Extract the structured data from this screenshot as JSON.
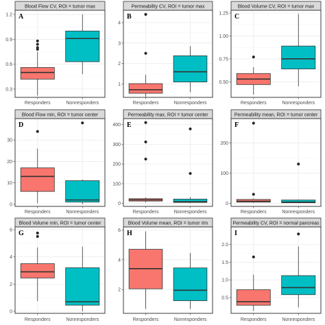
{
  "colors": {
    "responders": "#F8766D",
    "nonresponders": "#00BFC4"
  },
  "chart_data": [
    {
      "type": "box",
      "letter": "A",
      "title": "Blood Flow CV, ROI = tumor max",
      "categories": [
        "Responders",
        "Nonresponders"
      ],
      "ylim": [
        0.2,
        1.25
      ],
      "yticks": [
        0.3,
        0.6,
        0.9,
        1.2
      ],
      "yticklabels": [
        "0.3",
        "0.6",
        "0.9",
        "1.2"
      ],
      "boxes": [
        {
          "min": 0.22,
          "q1": 0.42,
          "median": 0.5,
          "q3": 0.56,
          "max": 0.75,
          "outliers": [
            0.88,
            0.84,
            0.8,
            0.78
          ]
        },
        {
          "min": 0.48,
          "q1": 0.63,
          "median": 0.91,
          "q3": 1.0,
          "max": 1.2,
          "outliers": []
        }
      ]
    },
    {
      "type": "box",
      "letter": "B",
      "title": "Permeability CV, ROI = tumor max",
      "categories": [
        "Responders",
        "Nonresponders"
      ],
      "ylim": [
        0.35,
        4.6
      ],
      "yticks": [
        1,
        2,
        3,
        4
      ],
      "yticklabels": [
        "1",
        "2",
        "3",
        "4"
      ],
      "boxes": [
        {
          "min": 0.38,
          "q1": 0.55,
          "median": 0.72,
          "q3": 1.02,
          "max": 1.45,
          "outliers": [
            4.4,
            2.5
          ]
        },
        {
          "min": 0.6,
          "q1": 1.1,
          "median": 1.6,
          "q3": 2.38,
          "max": 2.85,
          "outliers": []
        }
      ]
    },
    {
      "type": "box",
      "letter": "C",
      "title": "Blood Volume CV, ROI = tumor max",
      "categories": [
        "Responders",
        "Nonresponders"
      ],
      "ylim": [
        0.33,
        1.28
      ],
      "yticks": [
        0.5,
        0.75,
        1.0,
        1.25
      ],
      "yticklabels": [
        "0.50",
        "0.75",
        "1.00",
        "1.25"
      ],
      "boxes": [
        {
          "min": 0.36,
          "q1": 0.47,
          "median": 0.53,
          "q3": 0.59,
          "max": 0.66,
          "outliers": [
            0.77
          ]
        },
        {
          "min": 0.45,
          "q1": 0.64,
          "median": 0.75,
          "q3": 0.89,
          "max": 1.24,
          "outliers": []
        }
      ]
    },
    {
      "type": "box",
      "letter": "D",
      "title": "Blood Flow min, ROI = tumor center",
      "categories": [
        "Responders",
        "Nonresponders"
      ],
      "ylim": [
        -1,
        40
      ],
      "yticks": [
        0,
        10,
        20,
        30
      ],
      "yticklabels": [
        "0",
        "10",
        "20",
        "30"
      ],
      "boxes": [
        {
          "min": 0.5,
          "q1": 6,
          "median": 13,
          "q3": 17,
          "max": 26,
          "outliers": [
            34
          ]
        },
        {
          "min": 0,
          "q1": 1,
          "median": 2,
          "q3": 11,
          "max": 11.5,
          "outliers": [
            38
          ]
        }
      ]
    },
    {
      "type": "box",
      "letter": "E",
      "title": "Permeability max, ROI = tumor center",
      "categories": [
        "Responders",
        "Nonresponders"
      ],
      "ylim": [
        -15,
        430
      ],
      "yticks": [
        0,
        100,
        200,
        300,
        400
      ],
      "yticklabels": [
        "0",
        "100",
        "200",
        "300",
        "400"
      ],
      "boxes": [
        {
          "min": 5,
          "q1": 12,
          "median": 18,
          "q3": 24,
          "max": 30,
          "outliers": [
            410,
            312,
            225
          ]
        },
        {
          "min": 2,
          "q1": 5,
          "median": 9,
          "q3": 22,
          "max": 32,
          "outliers": [
            378,
            152
          ]
        }
      ]
    },
    {
      "type": "box",
      "letter": "F",
      "title": "Permeability mean, ROI = tumor center",
      "categories": [
        "Responders",
        "Nonresponders"
      ],
      "ylim": [
        -10,
        280
      ],
      "yticks": [
        0,
        100,
        200
      ],
      "yticklabels": [
        "0",
        "100",
        "200"
      ],
      "boxes": [
        {
          "min": 2,
          "q1": 4,
          "median": 7,
          "q3": 13,
          "max": 16,
          "outliers": [
            265,
            30
          ]
        },
        {
          "min": 1,
          "q1": 2,
          "median": 4,
          "q3": 11,
          "max": 13,
          "outliers": [
            130
          ]
        }
      ]
    },
    {
      "type": "box",
      "letter": "G",
      "title": "Blood Volume min, ROI = tumor center",
      "categories": [
        "Responders",
        "Nonresponders"
      ],
      "ylim": [
        -0.15,
        6.2
      ],
      "yticks": [
        0,
        2,
        4,
        6
      ],
      "yticklabels": [
        "0",
        "2",
        "4",
        "6"
      ],
      "boxes": [
        {
          "min": 0.75,
          "q1": 2.45,
          "median": 2.9,
          "q3": 3.5,
          "max": 4.7,
          "outliers": [
            5.75,
            5.5
          ]
        },
        {
          "min": 0.0,
          "q1": 0.45,
          "median": 0.7,
          "q3": 3.2,
          "max": 4.75,
          "outliers": []
        }
      ]
    },
    {
      "type": "box",
      "letter": "H",
      "title": "Blood Volume mean, ROI = tumor rim",
      "categories": [
        "Responders",
        "Nonresponders"
      ],
      "ylim": [
        0.4,
        6.2
      ],
      "yticks": [
        2,
        4,
        6
      ],
      "yticklabels": [
        "2",
        "4",
        "6"
      ],
      "boxes": [
        {
          "min": 0.7,
          "q1": 2.05,
          "median": 3.4,
          "q3": 4.7,
          "max": 5.9,
          "outliers": []
        },
        {
          "min": 0.7,
          "q1": 1.25,
          "median": 1.95,
          "q3": 3.45,
          "max": 4.45,
          "outliers": []
        }
      ]
    },
    {
      "type": "box",
      "letter": "I",
      "title": "Permeability CV, ROI = normal pancreas",
      "categories": [
        "Responders",
        "Nonresponders"
      ],
      "ylim": [
        0.05,
        2.5
      ],
      "yticks": [
        0.5,
        1.0,
        1.5,
        2.0
      ],
      "yticklabels": [
        "0.5",
        "1.0",
        "1.5",
        "2.0"
      ],
      "boxes": [
        {
          "min": 0.12,
          "q1": 0.28,
          "median": 0.38,
          "q3": 0.72,
          "max": 1.15,
          "outliers": [
            1.65
          ]
        },
        {
          "min": 0.22,
          "q1": 0.58,
          "median": 0.78,
          "q3": 1.12,
          "max": 1.95,
          "outliers": [
            2.3
          ]
        }
      ]
    }
  ]
}
